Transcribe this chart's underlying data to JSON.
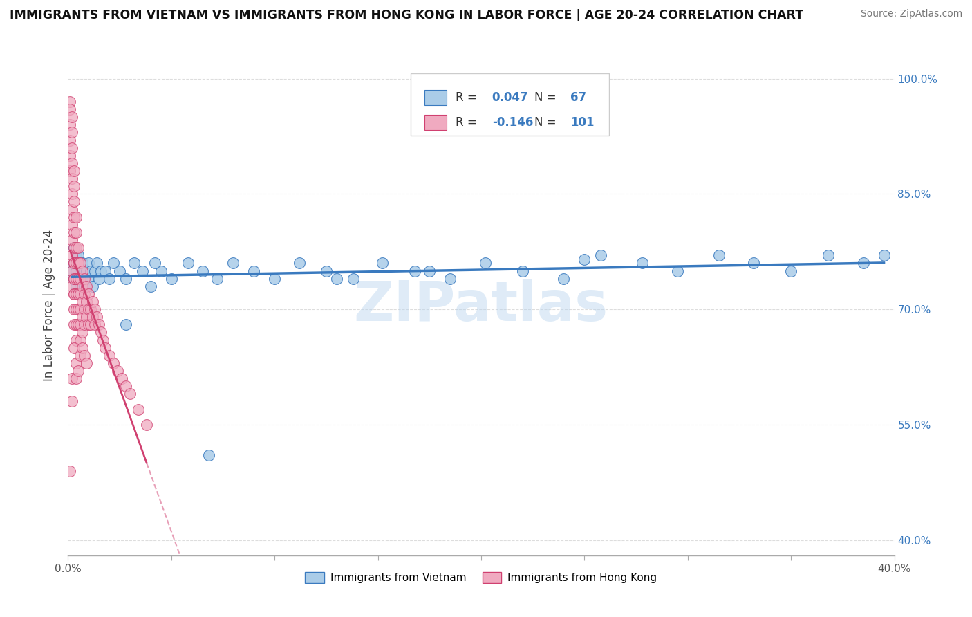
{
  "title": "IMMIGRANTS FROM VIETNAM VS IMMIGRANTS FROM HONG KONG IN LABOR FORCE | AGE 20-24 CORRELATION CHART",
  "source": "Source: ZipAtlas.com",
  "ylabel": "In Labor Force | Age 20-24",
  "xlim": [
    0.0,
    0.4
  ],
  "ylim": [
    0.38,
    1.03
  ],
  "x_ticks": [
    0.0,
    0.05,
    0.1,
    0.15,
    0.2,
    0.25,
    0.3,
    0.35,
    0.4
  ],
  "y_ticks": [
    0.4,
    0.55,
    0.7,
    0.85,
    1.0
  ],
  "y_tick_labels": [
    "40.0%",
    "55.0%",
    "70.0%",
    "85.0%",
    "100.0%"
  ],
  "R_vietnam": 0.047,
  "N_vietnam": 67,
  "R_hongkong": -0.146,
  "N_hongkong": 101,
  "color_vietnam": "#aacce8",
  "color_hongkong": "#f0aac0",
  "line_color_vietnam": "#3a7abf",
  "line_color_hongkong": "#d04070",
  "legend_labels": [
    "Immigrants from Vietnam",
    "Immigrants from Hong Kong"
  ],
  "vietnam_x": [
    0.002,
    0.003,
    0.003,
    0.003,
    0.004,
    0.004,
    0.004,
    0.005,
    0.005,
    0.005,
    0.005,
    0.006,
    0.006,
    0.006,
    0.007,
    0.007,
    0.008,
    0.008,
    0.009,
    0.01,
    0.01,
    0.011,
    0.012,
    0.013,
    0.014,
    0.015,
    0.016,
    0.018,
    0.02,
    0.022,
    0.025,
    0.028,
    0.032,
    0.036,
    0.04,
    0.045,
    0.05,
    0.058,
    0.065,
    0.072,
    0.08,
    0.09,
    0.1,
    0.112,
    0.125,
    0.138,
    0.152,
    0.168,
    0.185,
    0.202,
    0.22,
    0.24,
    0.258,
    0.278,
    0.295,
    0.315,
    0.332,
    0.35,
    0.368,
    0.385,
    0.395,
    0.25,
    0.175,
    0.13,
    0.068,
    0.042,
    0.028
  ],
  "vietnam_y": [
    0.75,
    0.78,
    0.76,
    0.74,
    0.77,
    0.75,
    0.73,
    0.76,
    0.74,
    0.72,
    0.77,
    0.75,
    0.73,
    0.76,
    0.74,
    0.76,
    0.75,
    0.73,
    0.75,
    0.76,
    0.74,
    0.75,
    0.73,
    0.75,
    0.76,
    0.74,
    0.75,
    0.75,
    0.74,
    0.76,
    0.75,
    0.74,
    0.76,
    0.75,
    0.73,
    0.75,
    0.74,
    0.76,
    0.75,
    0.74,
    0.76,
    0.75,
    0.74,
    0.76,
    0.75,
    0.74,
    0.76,
    0.75,
    0.74,
    0.76,
    0.75,
    0.74,
    0.77,
    0.76,
    0.75,
    0.77,
    0.76,
    0.75,
    0.77,
    0.76,
    0.77,
    0.765,
    0.75,
    0.74,
    0.51,
    0.76,
    0.68
  ],
  "hongkong_x": [
    0.001,
    0.001,
    0.001,
    0.001,
    0.001,
    0.001,
    0.002,
    0.002,
    0.002,
    0.002,
    0.002,
    0.002,
    0.002,
    0.002,
    0.002,
    0.002,
    0.002,
    0.002,
    0.003,
    0.003,
    0.003,
    0.003,
    0.003,
    0.003,
    0.003,
    0.003,
    0.003,
    0.003,
    0.003,
    0.003,
    0.003,
    0.003,
    0.004,
    0.004,
    0.004,
    0.004,
    0.004,
    0.004,
    0.004,
    0.004,
    0.004,
    0.005,
    0.005,
    0.005,
    0.005,
    0.005,
    0.005,
    0.005,
    0.005,
    0.005,
    0.006,
    0.006,
    0.006,
    0.006,
    0.006,
    0.006,
    0.007,
    0.007,
    0.007,
    0.007,
    0.007,
    0.008,
    0.008,
    0.008,
    0.008,
    0.009,
    0.009,
    0.009,
    0.01,
    0.01,
    0.01,
    0.011,
    0.011,
    0.012,
    0.012,
    0.013,
    0.013,
    0.014,
    0.015,
    0.016,
    0.017,
    0.018,
    0.02,
    0.022,
    0.024,
    0.026,
    0.028,
    0.03,
    0.034,
    0.038,
    0.001,
    0.002,
    0.002,
    0.003,
    0.004,
    0.004,
    0.005,
    0.006,
    0.007,
    0.008,
    0.009
  ],
  "hongkong_y": [
    0.97,
    0.96,
    0.94,
    0.92,
    0.9,
    0.88,
    0.95,
    0.93,
    0.91,
    0.89,
    0.87,
    0.85,
    0.83,
    0.81,
    0.79,
    0.77,
    0.75,
    0.73,
    0.88,
    0.86,
    0.84,
    0.82,
    0.8,
    0.78,
    0.76,
    0.74,
    0.72,
    0.7,
    0.68,
    0.76,
    0.74,
    0.72,
    0.82,
    0.8,
    0.78,
    0.76,
    0.74,
    0.72,
    0.7,
    0.68,
    0.66,
    0.78,
    0.76,
    0.74,
    0.72,
    0.7,
    0.68,
    0.76,
    0.74,
    0.72,
    0.76,
    0.74,
    0.72,
    0.7,
    0.68,
    0.66,
    0.75,
    0.73,
    0.71,
    0.69,
    0.67,
    0.74,
    0.72,
    0.7,
    0.68,
    0.73,
    0.71,
    0.69,
    0.72,
    0.7,
    0.68,
    0.7,
    0.68,
    0.71,
    0.69,
    0.7,
    0.68,
    0.69,
    0.68,
    0.67,
    0.66,
    0.65,
    0.64,
    0.63,
    0.62,
    0.61,
    0.6,
    0.59,
    0.57,
    0.55,
    0.49,
    0.58,
    0.61,
    0.65,
    0.63,
    0.61,
    0.62,
    0.64,
    0.65,
    0.64,
    0.63
  ],
  "trendline_hk_x_end": 0.15,
  "trendline_hk_x_dashed_end": 0.4
}
